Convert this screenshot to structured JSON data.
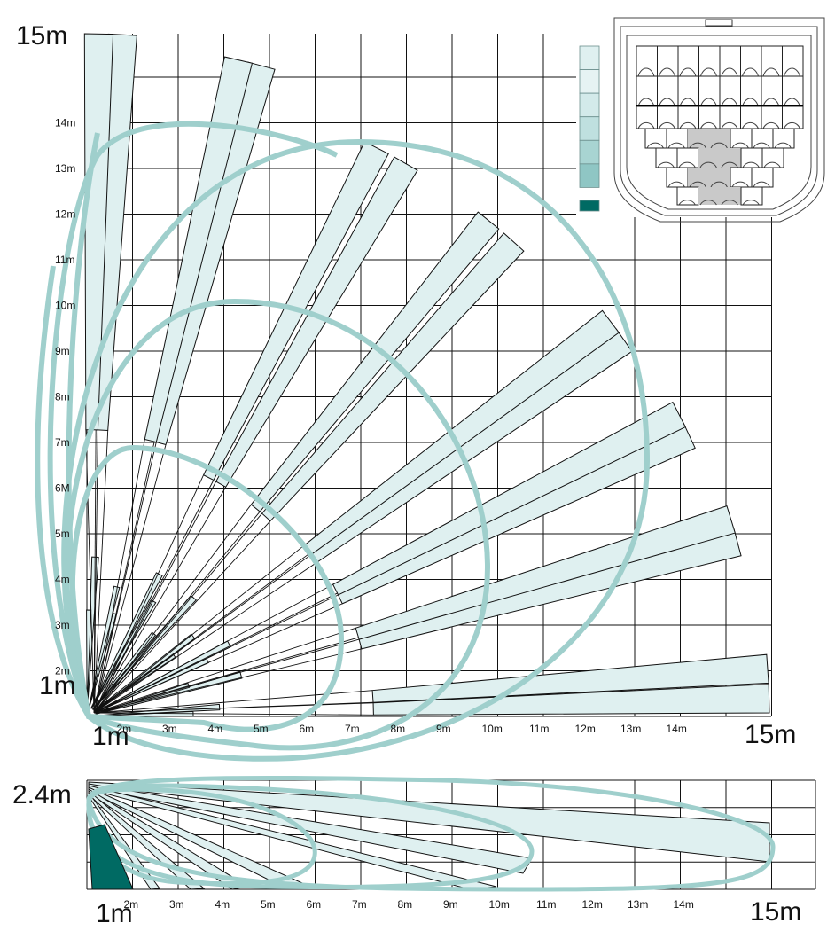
{
  "top_view": {
    "y_corner_label": "15m",
    "origin_y_label": "1m",
    "origin_x_label": "1m",
    "x_corner_label": "15m",
    "y_ticks": [
      "2m",
      "3m",
      "4m",
      "5m",
      "6M",
      "7m",
      "8m",
      "9m",
      "10m",
      "11m",
      "12m",
      "13m",
      "14m"
    ],
    "x_ticks": [
      "2m",
      "3m",
      "4m",
      "5m",
      "6m",
      "7m",
      "8m",
      "9m",
      "10m",
      "11m",
      "12m",
      "13m",
      "14m"
    ],
    "lobe_ranges_m": [
      5,
      9,
      12.6,
      15
    ],
    "beam_angles_deg": [
      1.5,
      4,
      15,
      17,
      25,
      27,
      35,
      37,
      48,
      51,
      60,
      63,
      75,
      77,
      87,
      89
    ]
  },
  "side_view": {
    "height_label": "2.4m",
    "origin_x_label": "1m",
    "x_corner_label": "15m",
    "x_ticks": [
      "2m",
      "3m",
      "4m",
      "5m",
      "6m",
      "7m",
      "8m",
      "9m",
      "10m",
      "11m",
      "12m",
      "13m",
      "14m"
    ],
    "lobe_ranges_m": [
      5,
      10,
      15
    ]
  },
  "legend": {
    "swatch_colors": [
      "#dff0f0",
      "#e6f3f3",
      "#d3eaea",
      "#bfe0df",
      "#a8d4d2",
      "#8fc6c4",
      "#006a63"
    ]
  },
  "colors": {
    "lobe": "#9fcfcc",
    "beam": "#dff0f0",
    "sensor_dark": "#006a63"
  }
}
